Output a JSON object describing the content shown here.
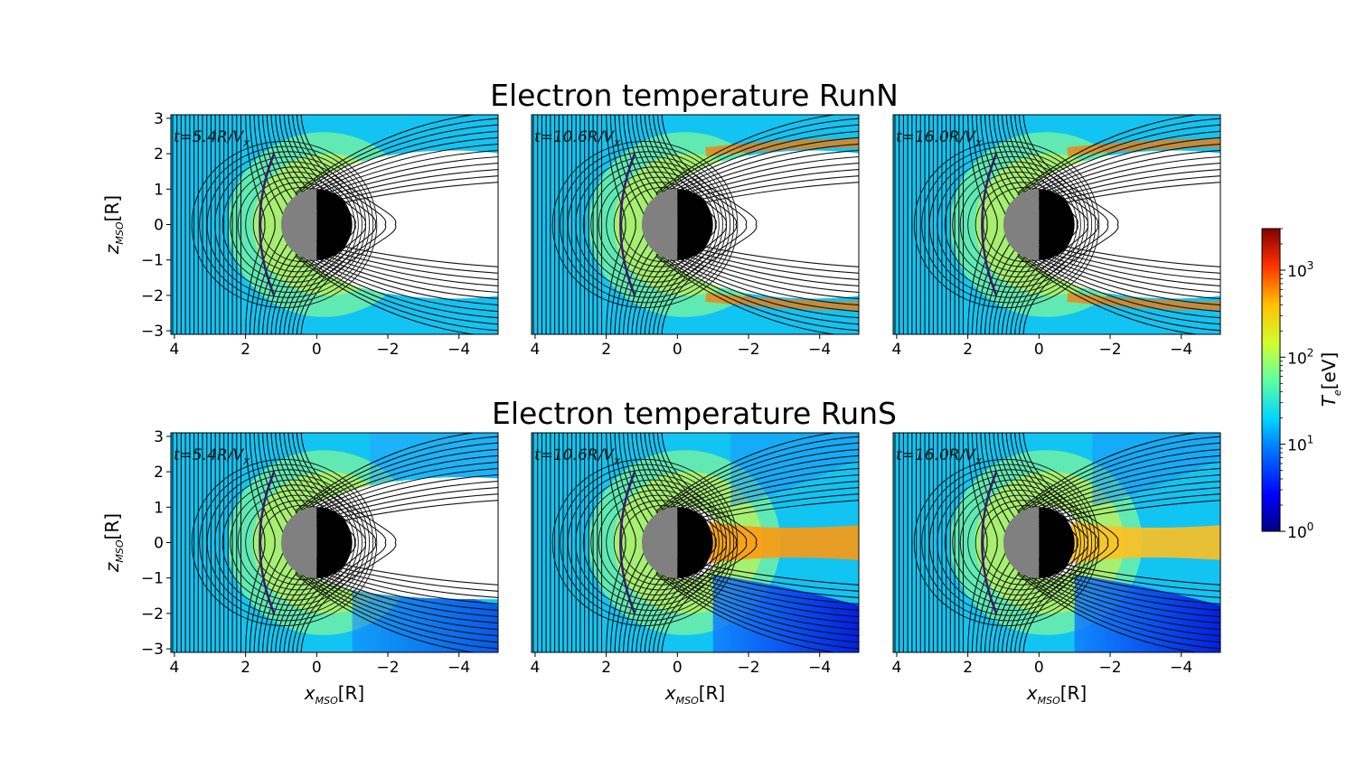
{
  "chart_data": {
    "type": "heatmap",
    "quantity": "Electron temperature",
    "colorbar": {
      "label_main": "T",
      "label_sub": "e",
      "label_unit": "[eV]",
      "scale": "log",
      "range": [
        1,
        3000
      ],
      "ticks": [
        {
          "value": 1,
          "base": "10",
          "exp": "0"
        },
        {
          "value": 10,
          "base": "10",
          "exp": "1"
        },
        {
          "value": 100,
          "base": "10",
          "exp": "2"
        },
        {
          "value": 1000,
          "base": "10",
          "exp": "3"
        }
      ],
      "colormap": "jet"
    },
    "axes": {
      "xlabel_main": "x",
      "xlabel_sub": "MSO",
      "xlabel_unit": "[R]",
      "ylabel_main": "z",
      "ylabel_sub": "MSO",
      "ylabel_unit": "[R]",
      "xlim": [
        4.1,
        -5.1
      ],
      "ylim": [
        -3.1,
        3.1
      ],
      "xticks": [
        {
          "v": 4,
          "t": "4"
        },
        {
          "v": 2,
          "t": "2"
        },
        {
          "v": 0,
          "t": "0"
        },
        {
          "v": -2,
          "t": "−2"
        },
        {
          "v": -4,
          "t": "−4"
        }
      ],
      "yticks": [
        {
          "v": 3,
          "t": "3"
        },
        {
          "v": 2,
          "t": "2"
        },
        {
          "v": 1,
          "t": "1"
        },
        {
          "v": 0,
          "t": "0"
        },
        {
          "v": -1,
          "t": "−1"
        },
        {
          "v": -2,
          "t": "−2"
        },
        {
          "v": -3,
          "t": "−3"
        }
      ]
    },
    "rows": [
      {
        "title": "Electron temperature RunN",
        "panels": [
          {
            "time_label": "t=5.4R/V",
            "time_sub": "x",
            "hot_lobes": false,
            "tail_open": false
          },
          {
            "time_label": "t=10.6R/V",
            "time_sub": "x",
            "hot_lobes": true,
            "tail_open": false
          },
          {
            "time_label": "t=16.0R/V",
            "time_sub": "x",
            "hot_lobes": true,
            "tail_open": false
          }
        ]
      },
      {
        "title": "Electron temperature RunS",
        "panels": [
          {
            "time_label": "t=5.4R/V",
            "time_sub": "x",
            "hot_lobes": false,
            "tail_open": true
          },
          {
            "time_label": "t=10.6R/V",
            "time_sub": "x",
            "hot_lobes": false,
            "tail_open": true
          },
          {
            "time_label": "t=16.0R/V",
            "time_sub": "x",
            "hot_lobes": false,
            "tail_open": true
          }
        ]
      }
    ]
  }
}
